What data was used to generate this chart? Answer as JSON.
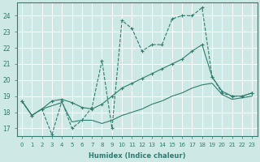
{
  "xlabel": "Humidex (Indice chaleur)",
  "bg_color": "#cde8e5",
  "grid_color": "#ffffff",
  "line_color": "#2e7d6e",
  "xlim": [
    -0.5,
    23.5
  ],
  "ylim": [
    16.5,
    24.8
  ],
  "xticks": [
    0,
    1,
    2,
    3,
    4,
    5,
    6,
    7,
    8,
    9,
    10,
    11,
    12,
    13,
    14,
    15,
    16,
    17,
    18,
    19,
    20,
    21,
    22,
    23
  ],
  "yticks": [
    17,
    18,
    19,
    20,
    21,
    22,
    23,
    24
  ],
  "line1_x": [
    0,
    1,
    2,
    3,
    4,
    5,
    6,
    7,
    8,
    9,
    10,
    11,
    12,
    13,
    14,
    15,
    16,
    17,
    18,
    19,
    20,
    21,
    22,
    23
  ],
  "line1_y": [
    18.7,
    17.8,
    18.2,
    16.6,
    18.7,
    17.0,
    17.5,
    18.3,
    21.2,
    17.0,
    23.7,
    23.2,
    21.8,
    22.2,
    22.2,
    23.8,
    24.0,
    24.0,
    24.5,
    20.2,
    19.2,
    19.0,
    19.0,
    19.2
  ],
  "line2_x": [
    0,
    1,
    2,
    3,
    4,
    5,
    6,
    7,
    8,
    9,
    10,
    11,
    12,
    13,
    14,
    15,
    16,
    17,
    18,
    19,
    20,
    21,
    22,
    23
  ],
  "line2_y": [
    18.7,
    17.8,
    18.2,
    18.7,
    18.8,
    18.6,
    18.3,
    18.2,
    18.5,
    19.0,
    19.5,
    19.8,
    20.1,
    20.4,
    20.7,
    21.0,
    21.3,
    21.8,
    22.2,
    20.2,
    19.3,
    19.0,
    19.0,
    19.2
  ],
  "line3_x": [
    0,
    1,
    2,
    3,
    4,
    5,
    6,
    7,
    8,
    9,
    10,
    11,
    12,
    13,
    14,
    15,
    16,
    17,
    18,
    19,
    20,
    21,
    22,
    23
  ],
  "line3_y": [
    18.7,
    17.8,
    18.2,
    18.4,
    18.6,
    17.4,
    17.5,
    17.5,
    17.3,
    17.5,
    17.8,
    18.0,
    18.2,
    18.5,
    18.7,
    19.0,
    19.2,
    19.5,
    19.7,
    19.8,
    19.1,
    18.8,
    18.9,
    19.0
  ]
}
